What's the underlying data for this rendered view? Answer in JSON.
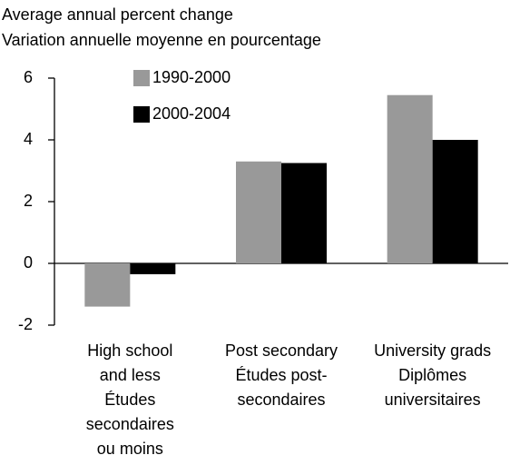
{
  "chart_data": {
    "type": "bar",
    "title": [
      "Average annual percent change",
      "Variation annuelle moyenne en pourcentage"
    ],
    "categories": [
      [
        "High school",
        "and less",
        "Études",
        "secondaires",
        "ou moins"
      ],
      [
        "Post secondary",
        "Études post-",
        "secondaires"
      ],
      [
        "University grads",
        "Diplômes",
        "universitaires"
      ]
    ],
    "series": [
      {
        "name": "1990-2000",
        "color": "#999999",
        "values": [
          -1.4,
          3.3,
          5.45
        ]
      },
      {
        "name": "2000-2004",
        "color": "#000000",
        "values": [
          -0.35,
          3.25,
          4.0
        ]
      }
    ],
    "ylim": [
      -2,
      6
    ],
    "yticks": [
      -2,
      0,
      2,
      4,
      6
    ],
    "grid": false,
    "legend": "top"
  }
}
